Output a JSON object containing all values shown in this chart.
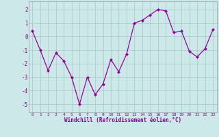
{
  "x": [
    0,
    1,
    2,
    3,
    4,
    5,
    6,
    7,
    8,
    9,
    10,
    11,
    12,
    13,
    14,
    15,
    16,
    17,
    18,
    19,
    20,
    21,
    22,
    23
  ],
  "y": [
    0.4,
    -1.0,
    -2.5,
    -1.2,
    -1.8,
    -3.0,
    -5.0,
    -3.0,
    -4.3,
    -3.5,
    -1.7,
    -2.6,
    -1.3,
    1.0,
    1.2,
    1.6,
    2.0,
    1.9,
    0.3,
    0.4,
    -1.1,
    -1.5,
    -0.9,
    0.5
  ],
  "line_color": "#990099",
  "marker": "D",
  "marker_size": 2,
  "bg_color": "#cce8e8",
  "grid_color": "#aacccc",
  "tick_color": "#880088",
  "label_color": "#880088",
  "xlabel": "Windchill (Refroidissement éolien,°C)",
  "xlim": [
    -0.5,
    23.5
  ],
  "ylim": [
    -5.6,
    2.6
  ],
  "yticks": [
    2,
    1,
    0,
    -1,
    -2,
    -3,
    -4,
    -5
  ],
  "xticks": [
    0,
    1,
    2,
    3,
    4,
    5,
    6,
    7,
    8,
    9,
    10,
    11,
    12,
    13,
    14,
    15,
    16,
    17,
    18,
    19,
    20,
    21,
    22,
    23
  ]
}
